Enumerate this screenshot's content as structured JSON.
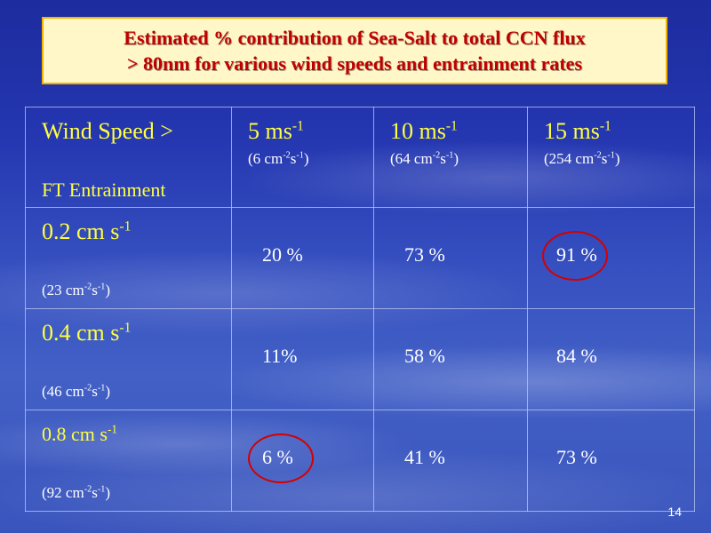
{
  "title": {
    "line1": "Estimated % contribution of Sea-Salt to total CCN flux",
    "line2": "> 80nm for various wind speeds and entrainment rates"
  },
  "header": {
    "wind_label": "Wind Speed >",
    "ft_label": "FT Entrainment",
    "columns": [
      {
        "speed": "5 ms",
        "speed_sup": "-1",
        "flux_a": "(6 cm",
        "flux_sup1": "-2",
        "flux_b": "s",
        "flux_sup2": "-1",
        "flux_c": ")"
      },
      {
        "speed": "10 ms",
        "speed_sup": "-1",
        "flux_a": "(64 cm",
        "flux_sup1": "-2",
        "flux_b": "s",
        "flux_sup2": "-1",
        "flux_c": ")"
      },
      {
        "speed": "15 ms",
        "speed_sup": "-1",
        "flux_a": "(254 cm",
        "flux_sup1": "-2",
        "flux_b": "s",
        "flux_sup2": "-1",
        "flux_c": ")"
      }
    ]
  },
  "rows": [
    {
      "rate": "0.2 cm s",
      "rate_sup": "-1",
      "flux_a": "(23 cm",
      "flux_sup1": "-2",
      "flux_b": "s",
      "flux_sup2": "-1",
      "flux_c": ")",
      "values": [
        "20 %",
        "73 %",
        "91 %"
      ]
    },
    {
      "rate": "0.4 cm s",
      "rate_sup": "-1",
      "flux_a": "(46 cm",
      "flux_sup1": "-2",
      "flux_b": "s",
      "flux_sup2": "-1",
      "flux_c": ")",
      "values": [
        "11%",
        "58 %",
        "84 %"
      ]
    },
    {
      "rate": "0.8 cm s",
      "rate_sup": "-1",
      "flux_a": "(92 cm",
      "flux_sup1": "-2",
      "flux_b": "s",
      "flux_sup2": "-1",
      "flux_c": ")",
      "values": [
        "6 %",
        "41 %",
        "73 %"
      ]
    }
  ],
  "highlight_color": "#d40000",
  "title_color": "#c00000",
  "header_color": "#ffff40",
  "page_number": "14"
}
